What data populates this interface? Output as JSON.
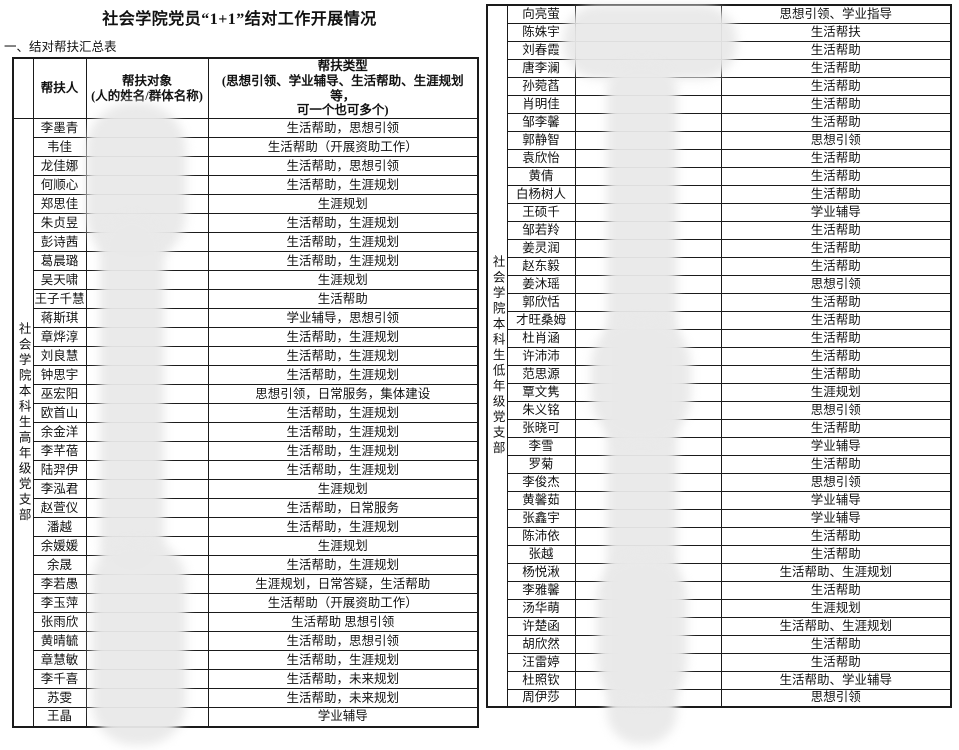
{
  "page": {
    "title": "社会学院党员“1+1”结对工作开展情况",
    "section_label": "一、结对帮扶汇总表"
  },
  "headers": {
    "helper": "帮扶人",
    "target_line1": "帮扶对象",
    "target_line2": "(人的姓名/群体名称)",
    "type_line1": "帮扶类型",
    "type_line2": "(思想引领、学业辅导、生活帮助、生涯规划等，",
    "type_line3": "可一个也可多个)"
  },
  "colors": {
    "border": "#1a1a1a",
    "text": "#111111",
    "redaction": "#e9e9e9"
  },
  "left_table": {
    "group_label": "社会学院本科生高年级党支部",
    "rows": [
      {
        "name": "李墨青",
        "target": "",
        "type": "生活帮助，思想引领"
      },
      {
        "name": "韦佳",
        "target": "",
        "type": "生活帮助（开展资助工作）"
      },
      {
        "name": "龙佳娜",
        "target": "",
        "type": "生活帮助，思想引领"
      },
      {
        "name": "何顺心",
        "target": "",
        "type": "生活帮助，生涯规划"
      },
      {
        "name": "郑思佳",
        "target": "",
        "type": "生涯规划"
      },
      {
        "name": "朱贞昱",
        "target": "",
        "type": "生活帮助，生涯规划"
      },
      {
        "name": "彭诗茜",
        "target": "",
        "type": "生活帮助，生涯规划"
      },
      {
        "name": "葛晨璐",
        "target": "",
        "type": "生活帮助，生涯规划"
      },
      {
        "name": "吴天啸",
        "target": "",
        "type": "生涯规划"
      },
      {
        "name": "王子千慧",
        "target": "",
        "type": "生活帮助"
      },
      {
        "name": "蒋斯琪",
        "target": "",
        "type": "学业辅导，思想引领"
      },
      {
        "name": "章烨淳",
        "target": "",
        "type": "生活帮助，生涯规划"
      },
      {
        "name": "刘良慧",
        "target": "",
        "type": "生活帮助，生涯规划"
      },
      {
        "name": "钟思宇",
        "target": "",
        "type": "生活帮助，生涯规划"
      },
      {
        "name": "巫宏阳",
        "target": "",
        "type": "思想引领，日常服务，集体建设"
      },
      {
        "name": "欧首山",
        "target": "",
        "type": "生活帮助，生涯规划"
      },
      {
        "name": "余金洋",
        "target": "",
        "type": "生活帮助，生涯规划"
      },
      {
        "name": "李芊蓓",
        "target": "",
        "type": "生活帮助，生涯规划"
      },
      {
        "name": "陆羿伊",
        "target": "",
        "type": "生活帮助，生涯规划"
      },
      {
        "name": "李泓君",
        "target": "",
        "type": "生涯规划"
      },
      {
        "name": "赵萱仪",
        "target": "",
        "type": "生活帮助，日常服务"
      },
      {
        "name": "潘越",
        "target": "",
        "type": "生活帮助，生涯规划"
      },
      {
        "name": "余媛媛",
        "target": "",
        "type": "生涯规划"
      },
      {
        "name": "余晟",
        "target": "",
        "type": "生活帮助，生涯规划"
      },
      {
        "name": "李若愚",
        "target": "",
        "type": "生涯规划，日常答疑，生活帮助"
      },
      {
        "name": "李玉萍",
        "target": "",
        "type": "生活帮助（开展资助工作）"
      },
      {
        "name": "张雨欣",
        "target": "",
        "type": "生活帮助 思想引领"
      },
      {
        "name": "黄晴毓",
        "target": "",
        "type": "生活帮助，思想引领"
      },
      {
        "name": "章慧敏",
        "target": "",
        "type": "生活帮助，生涯规划"
      },
      {
        "name": "李千喜",
        "target": "",
        "type": "生活帮助，未来规划"
      },
      {
        "name": "苏雯",
        "target": "",
        "type": "生活帮助，未来规划"
      },
      {
        "name": "王晶",
        "target": "",
        "type": "学业辅导"
      }
    ]
  },
  "right_table": {
    "group_label": "社会学院本科生低年级党支部",
    "rows": [
      {
        "name": "向亮萤",
        "target": "",
        "type": "思想引领、学业指导"
      },
      {
        "name": "陈姝宇",
        "target": "",
        "type": "生活帮扶"
      },
      {
        "name": "刘春霞",
        "target": "",
        "type": "生活帮助"
      },
      {
        "name": "唐李澜",
        "target": "",
        "type": "生活帮助"
      },
      {
        "name": "孙菀萏",
        "target": "",
        "type": "生活帮助"
      },
      {
        "name": "肖明佳",
        "target": "",
        "type": "生活帮助"
      },
      {
        "name": "邹李馨",
        "target": "",
        "type": "生活帮助"
      },
      {
        "name": "郭静智",
        "target": "",
        "type": "思想引领"
      },
      {
        "name": "袁欣怡",
        "target": "",
        "type": "生活帮助"
      },
      {
        "name": "黄倩",
        "target": "",
        "type": "生活帮助"
      },
      {
        "name": "白杨树人",
        "target": "",
        "type": "生活帮助"
      },
      {
        "name": "王硕千",
        "target": "",
        "type": "学业辅导"
      },
      {
        "name": "邹若羚",
        "target": "",
        "type": "生活帮助"
      },
      {
        "name": "姜灵润",
        "target": "",
        "type": "生活帮助"
      },
      {
        "name": "赵东毅",
        "target": "",
        "type": "生活帮助"
      },
      {
        "name": "姜沐瑶",
        "target": "",
        "type": "思想引领"
      },
      {
        "name": "郭欣恬",
        "target": "",
        "type": "生活帮助"
      },
      {
        "name": "才旺桑姆",
        "target": "",
        "type": "生活帮助"
      },
      {
        "name": "杜肖涵",
        "target": "",
        "type": "生活帮助"
      },
      {
        "name": "许沛沛",
        "target": "",
        "type": "生活帮助"
      },
      {
        "name": "范思源",
        "target": "",
        "type": "生活帮助"
      },
      {
        "name": "覃文隽",
        "target": "",
        "type": "生涯规划"
      },
      {
        "name": "朱义铭",
        "target": "",
        "type": "思想引领"
      },
      {
        "name": "张晓可",
        "target": "",
        "type": "生活帮助"
      },
      {
        "name": "李雪",
        "target": "",
        "type": "学业辅导"
      },
      {
        "name": "罗菊",
        "target": "",
        "type": "生活帮助"
      },
      {
        "name": "李俊杰",
        "target": "",
        "type": "思想引领"
      },
      {
        "name": "黄馨茹",
        "target": "",
        "type": "学业辅导"
      },
      {
        "name": "张鑫宇",
        "target": "",
        "type": "学业辅导"
      },
      {
        "name": "陈沛依",
        "target": "",
        "type": "生活帮助"
      },
      {
        "name": "张越",
        "target": "",
        "type": "生活帮助"
      },
      {
        "name": "杨悦湫",
        "target": "",
        "type": "生活帮助、生涯规划"
      },
      {
        "name": "李雅馨",
        "target": "",
        "type": "生活帮助"
      },
      {
        "name": "汤华萌",
        "target": "",
        "type": "生涯规划"
      },
      {
        "name": "许楚函",
        "target": "",
        "type": "生活帮助、生涯规划"
      },
      {
        "name": "胡欣然",
        "target": "",
        "type": "生活帮助"
      },
      {
        "name": "汪雷婷",
        "target": "",
        "type": "生活帮助"
      },
      {
        "name": "杜照钦",
        "target": "",
        "type": "生活帮助、学业辅导"
      },
      {
        "name": "周伊莎",
        "target": "",
        "type": "思想引领"
      }
    ]
  }
}
